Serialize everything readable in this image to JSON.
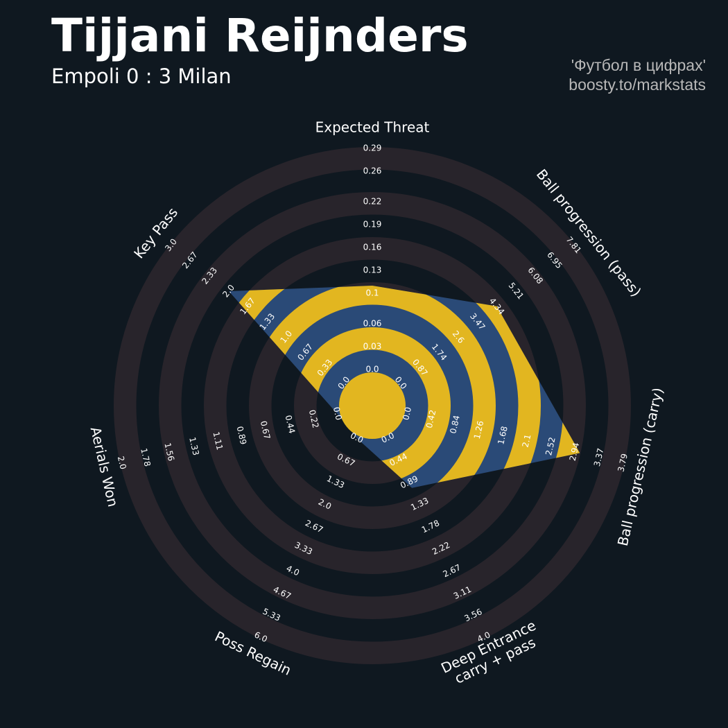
{
  "chart_data": {
    "type": "radar",
    "title": "Tijjani Reijnders",
    "subtitle": "Empoli 0 : 3 Milan",
    "credits": [
      "'Футбол в цифрах'",
      "boosty.to/markstats"
    ],
    "categories": [
      "Expected Threat",
      "Ball progression (pass)",
      "Ball progression (carry)",
      "Deep Entrance\ncarry + pass",
      "Poss Regain",
      "Aerials Won",
      "Key Pass"
    ],
    "values": [
      0.11,
      4.35,
      3.03,
      1.0,
      0,
      0,
      2.0
    ],
    "color": "#2a4a77",
    "ring_color": "#e2b620",
    "lims": [
      [
        0,
        0.29
      ],
      [
        0,
        7.81
      ],
      [
        0,
        3.79
      ],
      [
        0,
        4
      ],
      [
        0,
        6
      ],
      [
        0,
        2
      ],
      [
        0,
        3
      ]
    ],
    "ticks": [
      [
        {
          "value": 0,
          "label": "0.0"
        },
        0.03,
        0.06,
        0.1,
        0.13,
        0.16,
        0.19,
        0.22,
        0.26,
        0.29
      ],
      [
        {
          "value": 0,
          "label": "0.0"
        },
        0.87,
        1.74,
        2.6,
        3.47,
        4.34,
        5.21,
        6.08,
        6.95,
        7.81
      ],
      [
        {
          "value": 0,
          "label": "0.0"
        },
        0.42,
        0.84,
        1.26,
        1.68,
        2.1,
        2.52,
        2.94,
        3.37,
        3.79
      ],
      [
        {
          "value": 0,
          "label": "0.0"
        },
        0.44,
        0.89,
        1.33,
        1.78,
        2.22,
        2.67,
        3.11,
        3.56,
        {
          "value": 4,
          "label": "4.0"
        }
      ],
      [
        {
          "value": 0,
          "label": "0.0"
        },
        0.67,
        1.33,
        {
          "value": 2,
          "label": "2.0"
        },
        2.67,
        3.33,
        {
          "value": 4,
          "label": "4.0"
        },
        4.67,
        5.33,
        {
          "value": 6,
          "label": "6.0"
        }
      ],
      [
        {
          "value": 0,
          "label": "0.0"
        },
        0.22,
        0.44,
        0.67,
        0.89,
        1.11,
        1.33,
        1.56,
        1.78,
        {
          "value": 2,
          "label": "2.0"
        }
      ],
      [
        {
          "value": 0,
          "label": "0.0"
        },
        0.33,
        0.67,
        {
          "value": 1,
          "label": "1.0"
        },
        1.33,
        1.67,
        {
          "value": 2,
          "label": "2.0"
        },
        2.33,
        2.67,
        {
          "value": 3,
          "label": "3.0"
        }
      ]
    ]
  }
}
